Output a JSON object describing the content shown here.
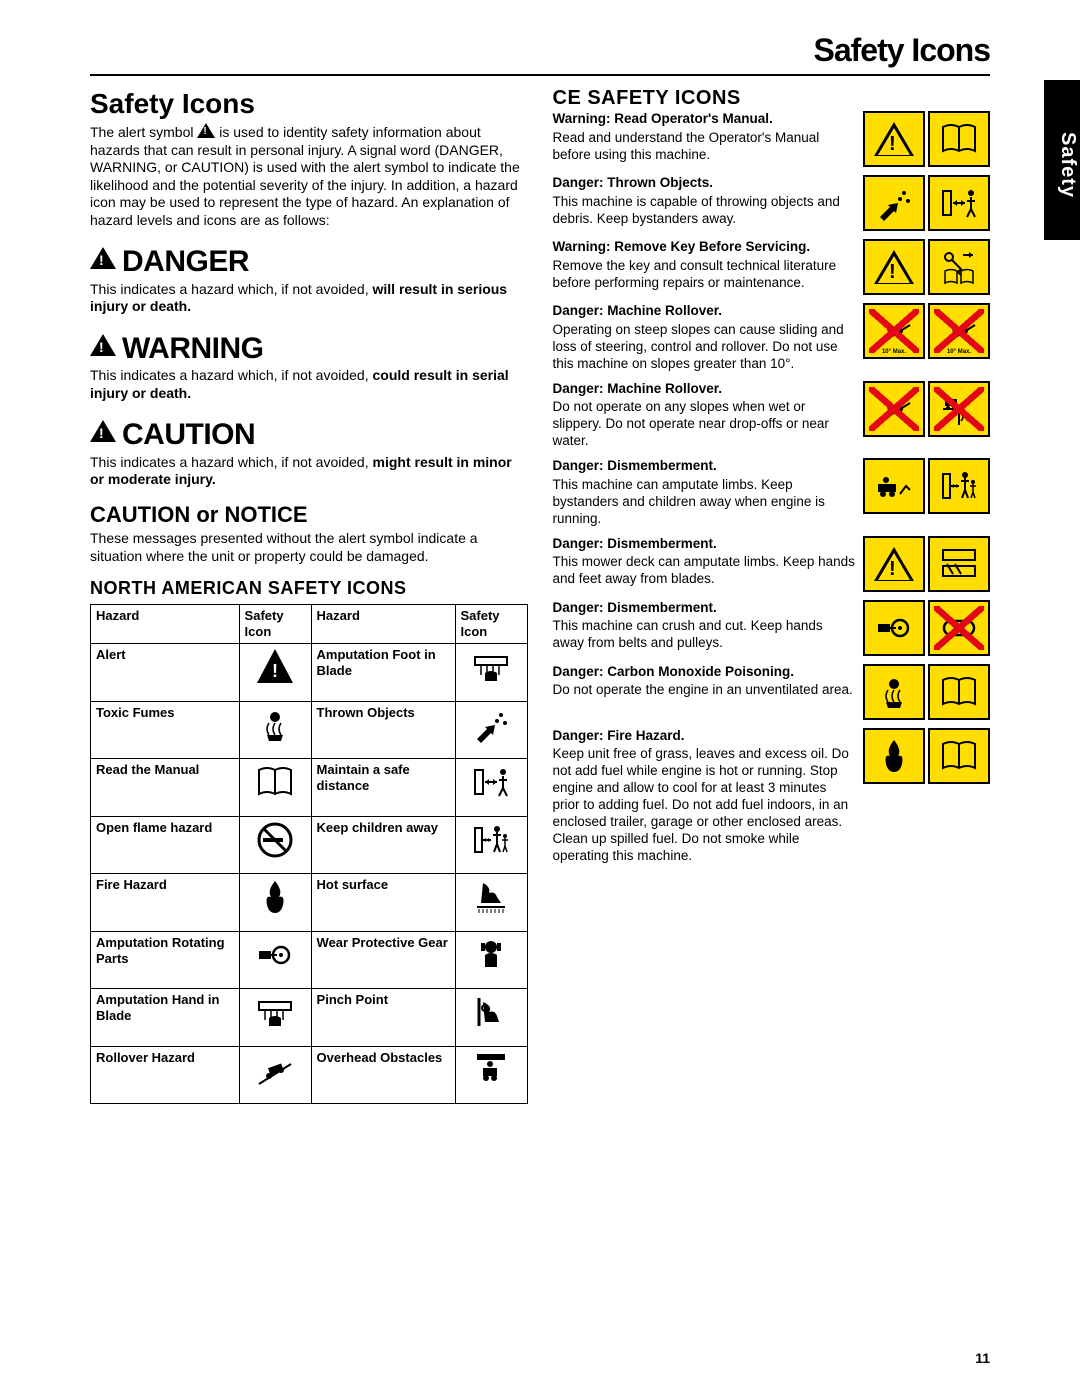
{
  "page": {
    "header": "Safety Icons",
    "side_tab": "Safety",
    "page_number": "11"
  },
  "left": {
    "title": "Safety Icons",
    "intro_before": "The alert symbol ",
    "intro_after": " is used to identity safety information about hazards that can result in personal injury. A signal word (DANGER, WARNING, or CAUTION) is used with the alert symbol to indicate the likelihood and the potential severity of the injury. In addition, a hazard icon may be used to represent the type of hazard. An explanation of hazard levels and icons are as follows:",
    "danger_title": "DANGER",
    "danger_text_1": "This indicates a hazard which, if not avoided, ",
    "danger_bold": "will result in serious injury or death.",
    "warning_title": "WARNING",
    "warning_text_1": "This indicates a hazard which, if not avoided, ",
    "warning_bold": "could result in serial injury or death.",
    "caution_title": "CAUTION",
    "caution_text_1": "This indicates a hazard which, if not avoided, ",
    "caution_bold": "might result in minor or moderate injury.",
    "notice_title": "CAUTION or NOTICE",
    "notice_text": "These messages presented without the alert symbol indicate a situation where the unit or property could be damaged.",
    "na_section": "NORTH AMERICAN SAFETY ICONS",
    "table_headers": [
      "Hazard",
      "Safety Icon",
      "Hazard",
      "Safety Icon"
    ],
    "rows": [
      {
        "h1": "Alert",
        "i1": "alert",
        "h2": "Amputation Foot in Blade",
        "i2": "foot-blade"
      },
      {
        "h1": "Toxic Fumes",
        "i1": "fumes",
        "h2": "Thrown Objects",
        "i2": "thrown"
      },
      {
        "h1": "Read the Manual",
        "i1": "manual",
        "h2": "Maintain a safe distance",
        "i2": "distance"
      },
      {
        "h1": "Open flame hazard",
        "i1": "no-smoking",
        "h2": "Keep children away",
        "i2": "children"
      },
      {
        "h1": "Fire Hazard",
        "i1": "fire",
        "h2": "Hot surface",
        "i2": "hot"
      },
      {
        "h1": "Amputation Rotating Parts",
        "i1": "rotating",
        "h2": "Wear Protective Gear",
        "i2": "gear"
      },
      {
        "h1": "Amputation Hand in Blade",
        "i1": "hand-blade",
        "h2": "Pinch Point",
        "i2": "pinch"
      },
      {
        "h1": "Rollover Hazard",
        "i1": "rollover",
        "h2": "Overhead Obstacles",
        "i2": "overhead"
      }
    ]
  },
  "right": {
    "title": "CE SAFETY ICONS",
    "items": [
      {
        "title": "Warning: Read Operator's Manual.",
        "text": "Read and understand the Operator's Manual before using this machine.",
        "icons": [
          {
            "type": "tri-warn",
            "bg": "yellow"
          },
          {
            "type": "manual",
            "bg": "yellow"
          }
        ]
      },
      {
        "title": "Danger: Thrown Objects.",
        "text": "This machine is capable of throwing objects and debris. Keep bystanders away.",
        "icons": [
          {
            "type": "thrown",
            "bg": "yellow"
          },
          {
            "type": "distance",
            "bg": "yellow"
          }
        ]
      },
      {
        "title": "Warning: Remove Key Before Servicing.",
        "text": "Remove the key and consult technical literature before performing repairs or maintenance.",
        "icons": [
          {
            "type": "tri-warn",
            "bg": "yellow"
          },
          {
            "type": "key-manual",
            "bg": "yellow"
          }
        ]
      },
      {
        "title": "Danger: Machine Rollover.",
        "text": "Operating on steep slopes can cause sliding and loss of steering, control and rollover. Do not use this machine on slopes greater than 10°.",
        "icons": [
          {
            "type": "slope",
            "bg": "yellow",
            "x": true,
            "label": "10° Max."
          },
          {
            "type": "slope2",
            "bg": "yellow",
            "x": true,
            "label": "10° Max."
          }
        ]
      },
      {
        "title": "Danger: Machine Rollover.",
        "text": "Do not operate on any slopes when wet or slippery. Do not operate near drop-offs or near water.",
        "icons": [
          {
            "type": "slope",
            "bg": "yellow",
            "x": true
          },
          {
            "type": "dropoff",
            "bg": "yellow",
            "x": true
          }
        ]
      },
      {
        "title": "Danger: Dismemberment.",
        "text": "This machine can amputate limbs. Keep bystanders and children away when engine is running.",
        "icons": [
          {
            "type": "mower-limb",
            "bg": "yellow"
          },
          {
            "type": "children",
            "bg": "yellow"
          }
        ]
      },
      {
        "title": "Danger: Dismemberment.",
        "text": "This mower deck can amputate limbs. Keep hands and feet away from blades.",
        "icons": [
          {
            "type": "tri-warn",
            "bg": "yellow"
          },
          {
            "type": "foot-hand",
            "bg": "yellow"
          }
        ]
      },
      {
        "title": "Danger: Dismemberment.",
        "text": "This machine can crush and cut. Keep hands away from belts and pulleys.",
        "icons": [
          {
            "type": "rotating",
            "bg": "yellow"
          },
          {
            "type": "belt",
            "bg": "yellow",
            "x": true
          }
        ]
      },
      {
        "title": "Danger: Carbon Monoxide Poisoning.",
        "text": "Do not operate the engine in an unventilated area.",
        "icons": [
          {
            "type": "fumes",
            "bg": "yellow"
          },
          {
            "type": "manual",
            "bg": "yellow"
          }
        ]
      },
      {
        "title": "Danger: Fire Hazard.",
        "text": "Keep unit free of grass, leaves and excess oil. Do not add fuel while engine is hot or running. Stop engine and allow to cool for at least 3 minutes prior to adding fuel. Do not add fuel indoors, in an enclosed trailer, garage or other enclosed areas. Clean up spilled fuel. Do not smoke while operating this machine.",
        "icons": [
          {
            "type": "fire",
            "bg": "yellow"
          },
          {
            "type": "manual",
            "bg": "yellow"
          }
        ]
      }
    ]
  },
  "colors": {
    "yellow": "#ffde00",
    "red": "#e30613",
    "black": "#000000"
  }
}
